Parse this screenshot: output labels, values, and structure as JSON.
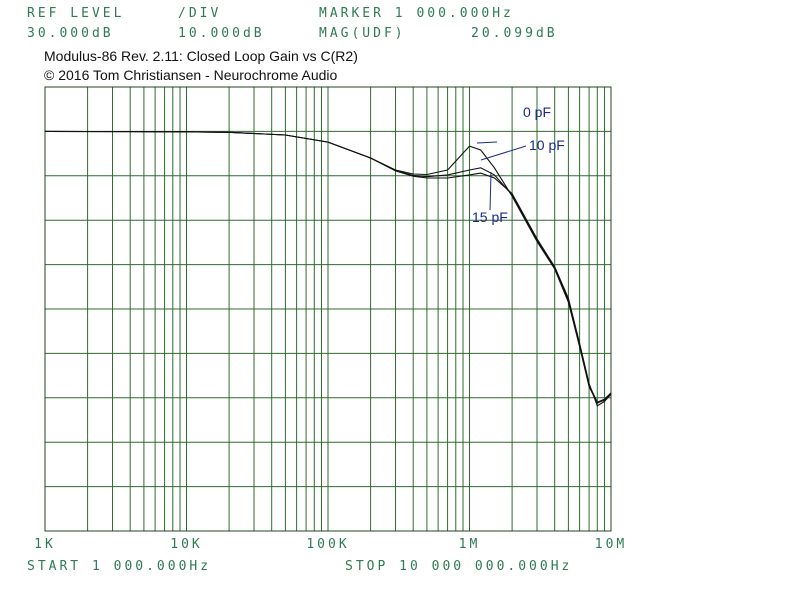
{
  "instrument": {
    "ref_label": "REF LEVEL",
    "div_label": "/DIV",
    "marker_label": "MARKER 1 000.000Hz",
    "ref_value": "30.000dB",
    "div_value": "10.000dB",
    "mag_label": "MAG(UDF)",
    "mag_value": "20.099dB",
    "start": "START 1 000.000Hz",
    "stop": "STOP 10 000 000.000Hz"
  },
  "chart_data": {
    "type": "line",
    "title": "Modulus-86 Rev. 2.11: Closed Loop Gain vs C(R2)",
    "subtitle": "© 2016 Tom Christiansen - Neurochrome Audio",
    "x_log": true,
    "grid": true,
    "x": [
      1000,
      10000,
      20000,
      50000,
      100000,
      200000,
      300000,
      400000,
      500000,
      700000,
      1000000,
      1200000,
      1500000,
      2000000,
      3000000,
      4000000,
      5000000,
      6000000,
      7000000,
      8000000,
      9000000,
      10000000
    ],
    "xlim": [
      1000,
      10000000
    ],
    "xticks": [
      {
        "value": 1000,
        "label": "1K"
      },
      {
        "value": 10000,
        "label": "10K"
      },
      {
        "value": 100000,
        "label": "100K"
      },
      {
        "value": 1000000,
        "label": "1M"
      },
      {
        "value": 10000000,
        "label": "10M"
      }
    ],
    "ylim": [
      -70,
      30
    ],
    "yticks": [
      -70,
      -60,
      -50,
      -40,
      -30,
      -20,
      -10,
      0,
      10,
      20,
      30
    ],
    "series": [
      {
        "name": "0 pF",
        "color": "#111111",
        "values": [
          20,
          19.9,
          19.8,
          19.2,
          17.6,
          14,
          11.3,
          10.4,
          10.3,
          11.3,
          16.7,
          15.8,
          11.8,
          5.4,
          -4.8,
          -11,
          -18.5,
          -28.5,
          -37.5,
          -41.2,
          -40.5,
          -38.9
        ]
      },
      {
        "name": "10 pF",
        "color": "#111111",
        "values": [
          20,
          19.9,
          19.8,
          19.2,
          17.6,
          14,
          11.2,
          10.1,
          9.8,
          10.2,
          11.3,
          11.8,
          10.2,
          5.7,
          -4.5,
          -10.8,
          -18,
          -28.1,
          -37.1,
          -41,
          -40.3,
          -38.9
        ]
      },
      {
        "name": "15 pF",
        "color": "#111111",
        "values": [
          20,
          19.9,
          19.8,
          19.2,
          17.6,
          14,
          11.1,
          9.9,
          9.5,
          9.5,
          10.2,
          10.6,
          9.5,
          6,
          -4.2,
          -10.5,
          -17.6,
          -27.7,
          -36.8,
          -41.8,
          -40.8,
          -39.2
        ]
      }
    ]
  }
}
